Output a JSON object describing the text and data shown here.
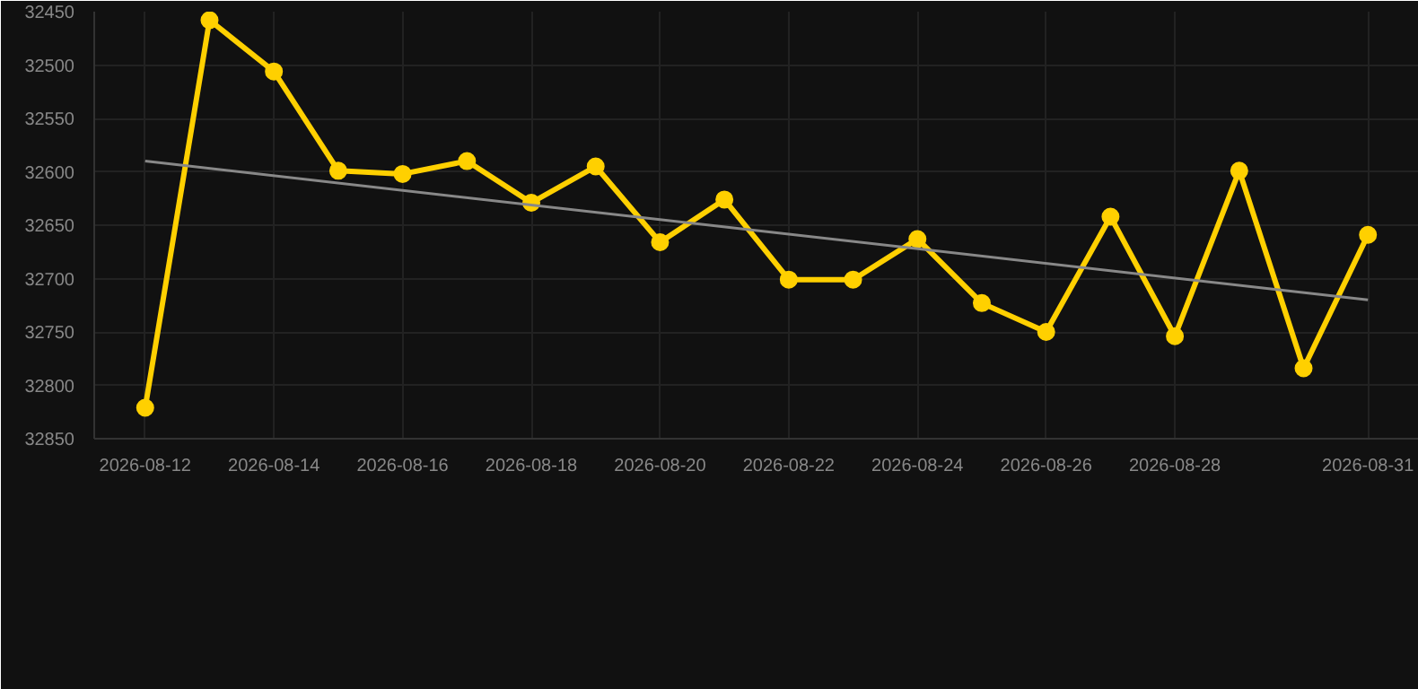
{
  "chart_data": {
    "type": "line",
    "x": [
      "2026-08-12",
      "2026-08-13",
      "2026-08-14",
      "2026-08-15",
      "2026-08-16",
      "2026-08-17",
      "2026-08-18",
      "2026-08-19",
      "2026-08-20",
      "2026-08-21",
      "2026-08-22",
      "2026-08-23",
      "2026-08-24",
      "2026-08-25",
      "2026-08-26",
      "2026-08-27",
      "2026-08-28",
      "2026-08-29",
      "2026-08-30",
      "2026-08-31"
    ],
    "series": [
      {
        "color": "#ffd000",
        "values": [
          32821,
          32458,
          32506,
          32599,
          32602,
          32590,
          32629,
          32595,
          32666,
          32626,
          32701,
          32701,
          32663,
          32723,
          32750,
          32642,
          32754,
          32599,
          32784,
          32659
        ],
        "marker": "circle"
      },
      {
        "type": "line",
        "color": "#888888",
        "x": [
          "2026-08-12",
          "2026-08-31"
        ],
        "values": [
          32590,
          32720
        ],
        "marker": "none"
      }
    ],
    "xlim": [
      "2026-08-11T05:00",
      "2026-08-31T19:00"
    ],
    "xticks": [
      "2026-08-12",
      "2026-08-14",
      "2026-08-16",
      "2026-08-18",
      "2026-08-20",
      "2026-08-22",
      "2026-08-24",
      "2026-08-26",
      "2026-08-28",
      "2026-08-31"
    ],
    "ylim": [
      32850,
      32450
    ],
    "yticks": [
      32450,
      32500,
      32550,
      32600,
      32650,
      32700,
      32750,
      32800,
      32850
    ],
    "grid": true,
    "line_style": "solid"
  }
}
